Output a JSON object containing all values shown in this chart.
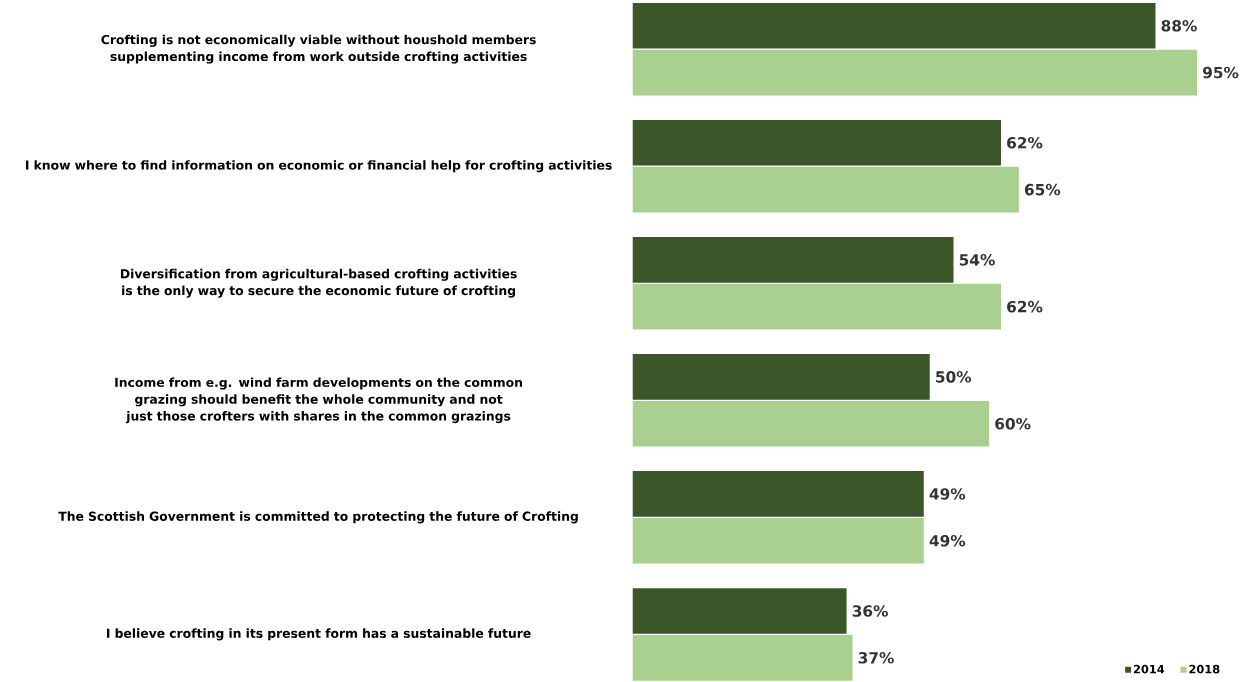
{
  "chart_data": {
    "type": "bar",
    "orientation": "horizontal",
    "legend": "bottom right",
    "categories": [
      "Crofting is not economically viable without houshold members supplementing income from work outside crofting activities",
      "I know where to find information on economic or financial help for crofting activities",
      "Diversification from agricultural-based crofting activities is the only way to secure the economic future of crofting",
      "Income from e.g. wind farm developments on the common grazing should benefit the whole community and not just those crofters with shares in the common grazings",
      "The Scottish Government is committed to protecting the future of Crofting",
      "I believe crofting in its present form has a sustainable future"
    ],
    "series": [
      {
        "name": "2014",
        "color": "#3b5628",
        "values": [
          88,
          62,
          54,
          50,
          49,
          36
        ],
        "value_labels": [
          "88%",
          "62%",
          "54%",
          "50%",
          "49%",
          "36%"
        ]
      },
      {
        "name": "2018",
        "color": "#a9d08e",
        "values": [
          95,
          65,
          62,
          60,
          49,
          37
        ],
        "value_labels": [
          "95%",
          "65%",
          "62%",
          "60%",
          "49%",
          "37%"
        ]
      }
    ]
  }
}
